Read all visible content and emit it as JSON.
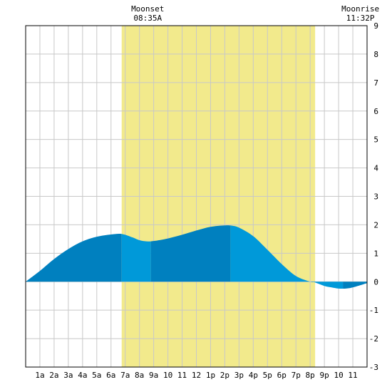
{
  "chart_data": {
    "type": "area",
    "title": "",
    "xlabel": "",
    "ylabel": "",
    "x_range": [
      0,
      24
    ],
    "ylim": [
      -3,
      9
    ],
    "x_ticks": [
      {
        "x": 1,
        "label": "1a"
      },
      {
        "x": 2,
        "label": "2a"
      },
      {
        "x": 3,
        "label": "3a"
      },
      {
        "x": 4,
        "label": "4a"
      },
      {
        "x": 5,
        "label": "5a"
      },
      {
        "x": 6,
        "label": "6a"
      },
      {
        "x": 7,
        "label": "7a"
      },
      {
        "x": 8,
        "label": "8a"
      },
      {
        "x": 9,
        "label": "9a"
      },
      {
        "x": 10,
        "label": "10"
      },
      {
        "x": 11,
        "label": "11"
      },
      {
        "x": 12,
        "label": "12"
      },
      {
        "x": 13,
        "label": "1p"
      },
      {
        "x": 14,
        "label": "2p"
      },
      {
        "x": 15,
        "label": "3p"
      },
      {
        "x": 16,
        "label": "4p"
      },
      {
        "x": 17,
        "label": "5p"
      },
      {
        "x": 18,
        "label": "6p"
      },
      {
        "x": 19,
        "label": "7p"
      },
      {
        "x": 20,
        "label": "8p"
      },
      {
        "x": 21,
        "label": "9p"
      },
      {
        "x": 22,
        "label": "10"
      },
      {
        "x": 23,
        "label": "11"
      }
    ],
    "y_ticks": [
      {
        "y": 9,
        "label": "9"
      },
      {
        "y": 8,
        "label": "8"
      },
      {
        "y": 7,
        "label": "7"
      },
      {
        "y": 6,
        "label": "6"
      },
      {
        "y": 5,
        "label": "5"
      },
      {
        "y": 4,
        "label": "4"
      },
      {
        "y": 3,
        "label": "3"
      },
      {
        "y": 2,
        "label": "2"
      },
      {
        "y": 1,
        "label": "1"
      },
      {
        "y": 0,
        "label": "0"
      },
      {
        "y": -1,
        "label": "-1"
      },
      {
        "y": -2,
        "label": "-2"
      },
      {
        "y": -3,
        "label": "-3"
      }
    ],
    "daylight_band": {
      "start": 6.75,
      "end": 20.35,
      "color": "#f2ea8c"
    },
    "grid": true,
    "tide_series": {
      "x": [
        0,
        1,
        2,
        3,
        4,
        5,
        6,
        6.75,
        7.5,
        8,
        8.5,
        9,
        10,
        11,
        12,
        13,
        14,
        14.5,
        15,
        16,
        17,
        18,
        19,
        20,
        20.3,
        21,
        21.5,
        22,
        22.5,
        23,
        24
      ],
      "y": [
        0,
        0.38,
        0.8,
        1.15,
        1.42,
        1.58,
        1.66,
        1.68,
        1.56,
        1.46,
        1.42,
        1.43,
        1.52,
        1.65,
        1.8,
        1.93,
        1.98,
        1.97,
        1.9,
        1.6,
        1.12,
        0.62,
        0.2,
        0,
        -0.02,
        -0.15,
        -0.2,
        -0.24,
        -0.24,
        -0.2,
        -0.05
      ]
    },
    "tide_segments": [
      {
        "start": 0,
        "end": 6.75,
        "color": "#0080bf"
      },
      {
        "start": 6.75,
        "end": 8.8,
        "color": "#0099d9"
      },
      {
        "start": 8.8,
        "end": 14.4,
        "color": "#0080bf"
      },
      {
        "start": 14.4,
        "end": 20.3,
        "color": "#0099d9"
      },
      {
        "start": 20.3,
        "end": 22.3,
        "color": "#0099d9"
      },
      {
        "start": 22.3,
        "end": 24,
        "color": "#0080bf"
      }
    ],
    "annotations": [
      {
        "id": "moonset",
        "label": "Moonset",
        "time": "08:35A",
        "x": 8.58
      },
      {
        "id": "moonrise",
        "label": "Moonrise",
        "time": "11:32P",
        "x": 23.53
      }
    ]
  }
}
